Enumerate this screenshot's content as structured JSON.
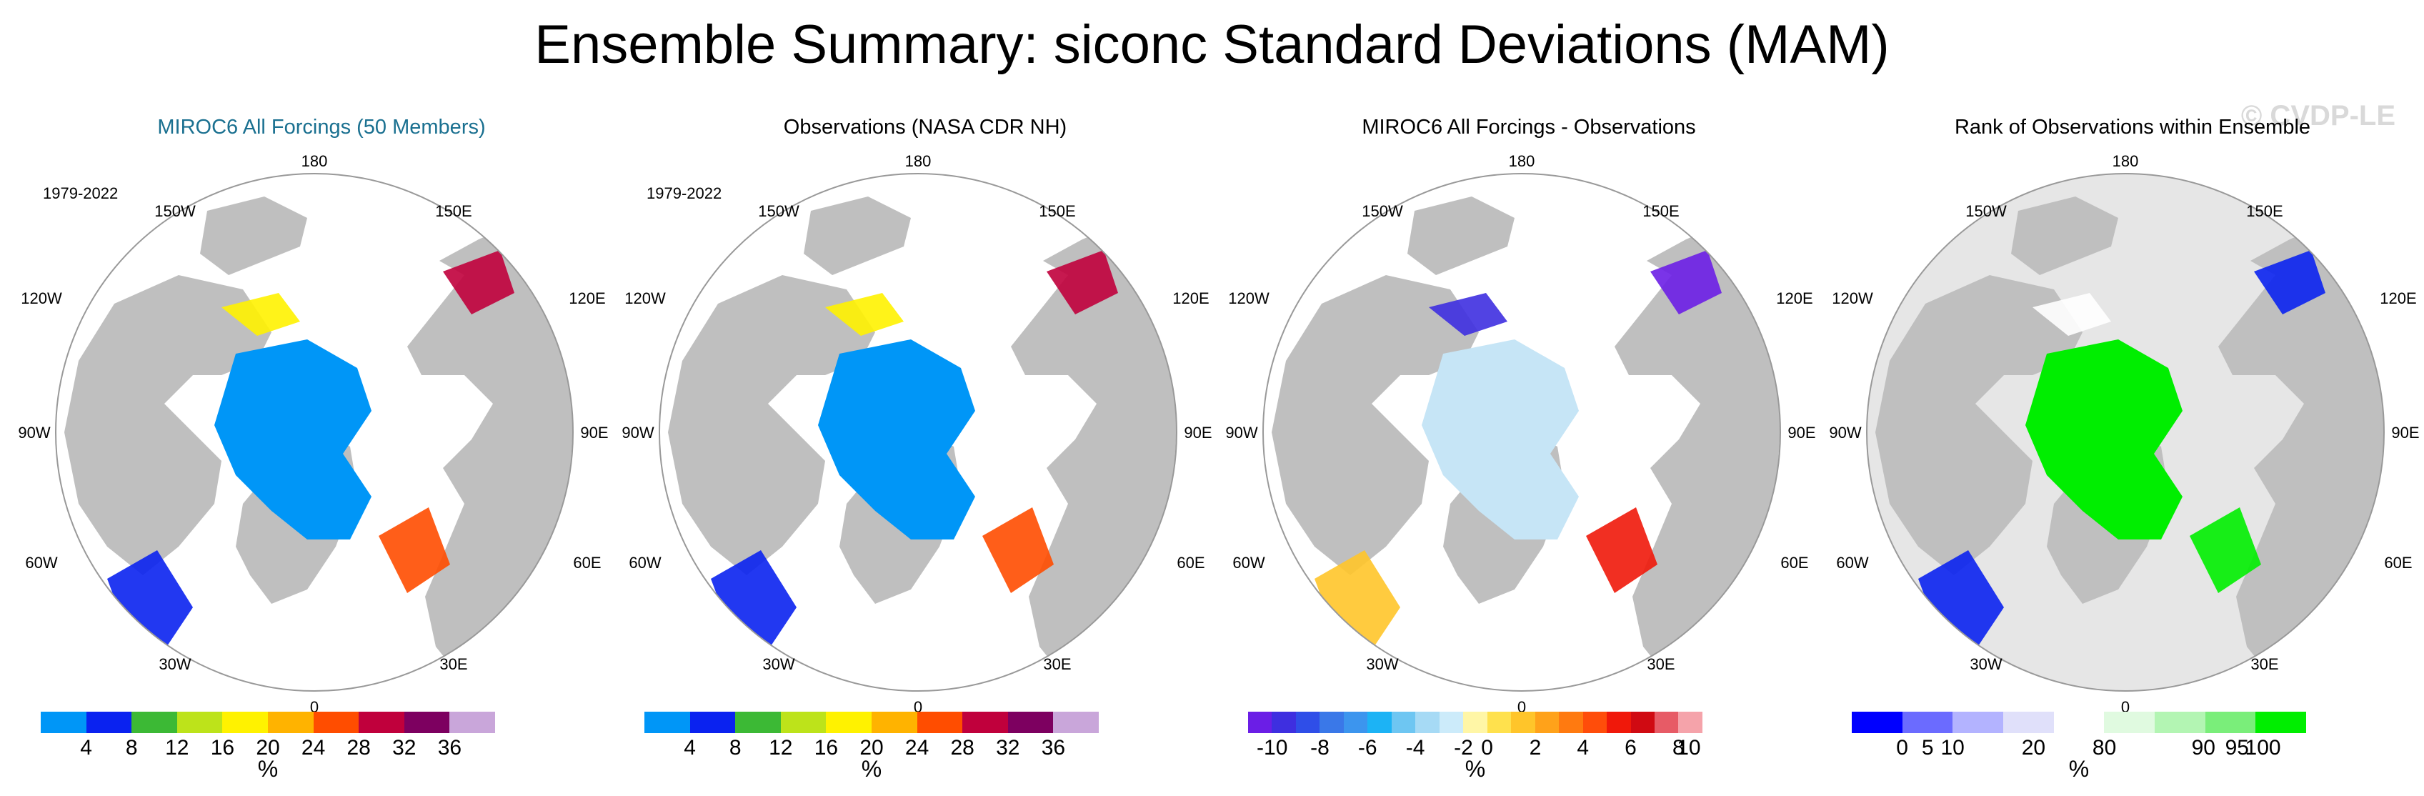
{
  "title": "Ensemble Summary: siconc Standard Deviations (MAM)",
  "watermark": "© CVDP-LE",
  "longitude_labels": {
    "top": "180",
    "bottom": "0",
    "left_upper": "120W",
    "left_mid": "90W",
    "left_lower": "60W",
    "right_upper": "120E",
    "right_mid": "90E",
    "right_lower": "60E",
    "tl": "150W",
    "tr": "150E",
    "bl": "30W",
    "br": "30E"
  },
  "colors": {
    "land": "#bfbfbf",
    "blue_ice": "#0096f7",
    "deep_blue": "#0a22f0",
    "green": "#3cb935",
    "yellowgreen": "#bde31a",
    "yellow": "#fff200",
    "orange": "#ffb300",
    "redorange": "#ff4d00",
    "crimson": "#c0003c",
    "purple": "#7d0060",
    "lavender": "#c9a6da",
    "lightblue_ice": "#c6e5f6",
    "rank_green": "#00ee00",
    "rank_gray": "#e6e6e6"
  },
  "panels": [
    {
      "title": "MIROC6 All Forcings (50 Members)",
      "period": "1979-2022",
      "colorbar": {
        "colors": [
          "#0096f7",
          "#0a22f0",
          "#3cb935",
          "#bde31a",
          "#fff200",
          "#ffb300",
          "#ff4d00",
          "#c0003c",
          "#7d0060",
          "#c9a6da"
        ],
        "labels": [
          "4",
          "8",
          "12",
          "16",
          "20",
          "24",
          "28",
          "32",
          "36"
        ],
        "unit": "%"
      }
    },
    {
      "title": "Observations (NASA CDR NH)",
      "period": "1979-2022",
      "colorbar": {
        "colors": [
          "#0096f7",
          "#0a22f0",
          "#3cb935",
          "#bde31a",
          "#fff200",
          "#ffb300",
          "#ff4d00",
          "#c0003c",
          "#7d0060",
          "#c9a6da"
        ],
        "labels": [
          "4",
          "8",
          "12",
          "16",
          "20",
          "24",
          "28",
          "32",
          "36"
        ],
        "unit": "%"
      }
    },
    {
      "title": "MIROC6 All Forcings - Observations",
      "period": "",
      "colorbar": {
        "colors": [
          "#6b1ee6",
          "#3e2fe0",
          "#2f4ee8",
          "#3a78e8",
          "#3c95ee",
          "#1cb3f5",
          "#6ec6f2",
          "#a6daf5",
          "#ccebfa",
          "#fff6a6",
          "#ffe14d",
          "#ffc52a",
          "#ffa21a",
          "#ff7a10",
          "#ff4d0a",
          "#f0180a",
          "#d00a12",
          "#e75b66",
          "#f5a3aa"
        ],
        "labels": [
          "-10",
          "-8",
          "-6",
          "-4",
          "-2",
          "0",
          "2",
          "4",
          "6",
          "8",
          "10"
        ],
        "unit": "%"
      }
    },
    {
      "title": "Rank of Observations within Ensemble",
      "period": "",
      "colorbar": {
        "colors": [
          "#0000ff",
          "#6b6bff",
          "#b3b3ff",
          "#e0e0fa",
          "#ffffff",
          "#e0fae0",
          "#b3f5b3",
          "#7aee7a",
          "#00ee00"
        ],
        "labels": [
          "0",
          "5",
          "10",
          "20",
          "80",
          "90",
          "95",
          "100"
        ],
        "unit": "%"
      }
    }
  ]
}
